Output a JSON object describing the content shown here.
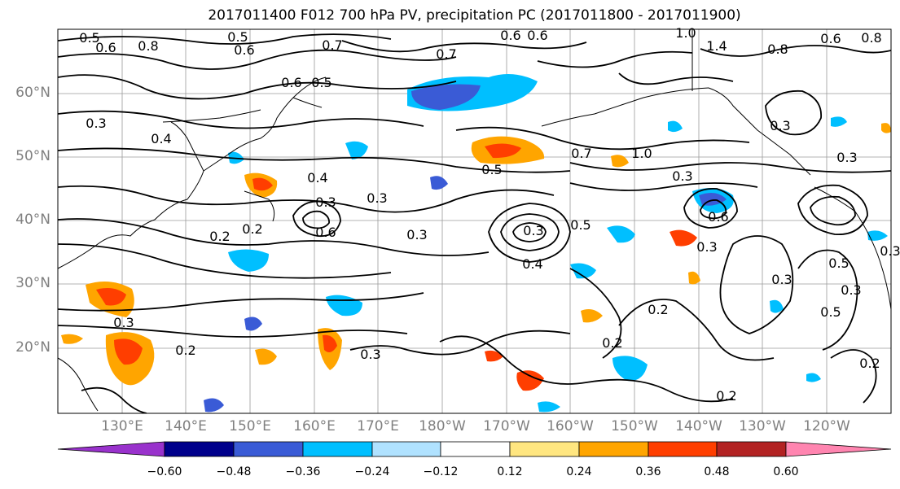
{
  "title": "2017011400 F012 700 hPa PV, precipitation PC (2017011800 - 2017011900)",
  "map": {
    "lat_labels": [
      "60°N",
      "50°N",
      "40°N",
      "30°N",
      "20°N"
    ],
    "lon_labels": [
      "130°E",
      "140°E",
      "150°E",
      "160°E",
      "170°E",
      "180°W",
      "170°W",
      "160°W",
      "150°W",
      "140°W",
      "130°W",
      "120°W"
    ],
    "contour_labels": [
      "0.5",
      "0.6",
      "0.8",
      "0.5",
      "0.6",
      "0.7",
      "0.7",
      "0.6",
      "0.6",
      "1.0",
      "1.4",
      "0.8",
      "0.6",
      "0.8",
      "0.6",
      "0.5",
      "0.3",
      "0.4",
      "0.3",
      "0.7",
      "1.0",
      "0.5",
      "0.3",
      "0.4",
      "0.3",
      "0.3",
      "0.6",
      "0.2",
      "0.5",
      "0.3",
      "0.2",
      "0.6",
      "0.4",
      "0.3",
      "0.2",
      "0.3",
      "0.5",
      "0.3",
      "0.2",
      "0.2",
      "0.3",
      "0.5",
      "0.3",
      "0.2",
      "0.3",
      "0.2",
      "0.3",
      "0.3"
    ],
    "contour_label_color": "#000000",
    "land_outline_color": "#000000",
    "grid_color": "#808080"
  },
  "colorbar": {
    "colors": [
      "#9932cc",
      "#00008b",
      "#3a5bd6",
      "#00bfff",
      "#b0e2ff",
      "#ffffff",
      "#ffe680",
      "#ffa500",
      "#ff3e00",
      "#b22222",
      "#ff85b0"
    ],
    "tick_labels": [
      "−0.60",
      "−0.48",
      "−0.36",
      "−0.24",
      "−0.12",
      "0.12",
      "0.24",
      "0.36",
      "0.48",
      "0.60"
    ]
  }
}
